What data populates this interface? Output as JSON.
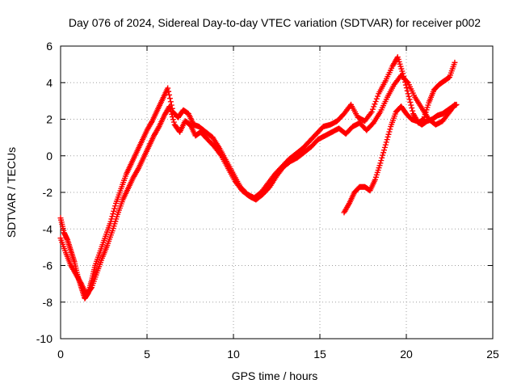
{
  "chart_data": {
    "type": "scatter",
    "title": "Day 076 of 2024, Sidereal Day-to-day VTEC variation (SDTVAR) for receiver p002",
    "xlabel": "GPS time / hours",
    "ylabel": "SDTVAR / TECUs",
    "xlim": [
      0,
      25
    ],
    "ylim": [
      -10,
      6
    ],
    "xticks": [
      "0",
      "5",
      "10",
      "15",
      "20",
      "25"
    ],
    "yticks": [
      "6",
      "4",
      "2",
      "0",
      "-2",
      "-4",
      "-6",
      "-8",
      "-10"
    ],
    "grid": true,
    "legend": "none",
    "marker": "plus",
    "series_color": "#ff0000",
    "series": [
      {
        "x": [
          0.0,
          0.2,
          0.4,
          0.6,
          0.8,
          1.0,
          1.2,
          1.4,
          1.6,
          1.8,
          2.0,
          2.3,
          2.6,
          2.9,
          3.2,
          3.5,
          3.8,
          4.1,
          4.4,
          4.7,
          5.0,
          5.3,
          5.6,
          5.9,
          6.2,
          6.5,
          6.8,
          7.1,
          7.4,
          7.7,
          8.0,
          8.4,
          8.8,
          9.2,
          9.6,
          10.0,
          10.4,
          10.8,
          11.2,
          11.6,
          12.0,
          12.4,
          12.8,
          13.2,
          13.6,
          14.0,
          14.4,
          14.8,
          15.2,
          15.6,
          16.0,
          16.4,
          16.8,
          17.2,
          17.6,
          18.0,
          18.4,
          18.8,
          19.2,
          19.5,
          19.8,
          20.1,
          20.4,
          20.7,
          21.0,
          21.3,
          21.6,
          21.9,
          22.2,
          22.5,
          22.8
        ],
        "y": [
          -3.4,
          -4.2,
          -4.6,
          -5.2,
          -5.8,
          -6.6,
          -7.2,
          -7.8,
          -7.5,
          -6.8,
          -6.0,
          -5.2,
          -4.4,
          -3.6,
          -2.6,
          -1.8,
          -1.0,
          -0.4,
          0.2,
          0.8,
          1.4,
          1.9,
          2.5,
          3.1,
          3.7,
          2.4,
          2.1,
          2.5,
          2.3,
          1.7,
          1.6,
          1.3,
          1.0,
          0.4,
          -0.3,
          -1.0,
          -1.7,
          -2.1,
          -2.3,
          -2.0,
          -1.5,
          -1.0,
          -0.6,
          -0.2,
          0.1,
          0.4,
          0.8,
          1.2,
          1.6,
          1.7,
          1.9,
          2.3,
          2.8,
          2.1,
          1.9,
          2.4,
          3.4,
          4.1,
          4.9,
          5.4,
          4.5,
          3.4,
          2.3,
          1.8,
          2.0,
          2.9,
          3.6,
          3.9,
          4.1,
          4.3,
          5.1
        ]
      },
      {
        "x": [
          0.0,
          0.3,
          0.6,
          0.9,
          1.2,
          1.5,
          1.8,
          2.1,
          2.4,
          2.7,
          3.0,
          3.3,
          3.6,
          3.9,
          4.2,
          4.5,
          4.8,
          5.1,
          5.4,
          5.7,
          6.0,
          6.3,
          6.6,
          6.9,
          7.2,
          7.5,
          7.8,
          8.1,
          8.5,
          8.9,
          9.3,
          9.7,
          10.1,
          10.5,
          10.9,
          11.3,
          11.7,
          12.1,
          12.5,
          12.9,
          13.3,
          13.7,
          14.1,
          14.5,
          14.9,
          15.3,
          15.7,
          16.1,
          16.5,
          16.9,
          17.3,
          17.7,
          18.1,
          18.5,
          18.9,
          19.3,
          19.7,
          20.1,
          20.5,
          20.9,
          21.3,
          21.7,
          22.1,
          22.5,
          22.8
        ],
        "y": [
          -4.5,
          -5.3,
          -6.0,
          -6.5,
          -7.0,
          -7.6,
          -7.2,
          -6.4,
          -5.6,
          -4.9,
          -4.1,
          -3.2,
          -2.4,
          -1.8,
          -1.2,
          -0.7,
          -0.1,
          0.5,
          1.1,
          1.6,
          2.2,
          2.7,
          1.7,
          1.3,
          1.9,
          1.7,
          1.1,
          1.3,
          0.9,
          0.5,
          0.0,
          -0.7,
          -1.4,
          -1.9,
          -2.2,
          -2.4,
          -2.1,
          -1.7,
          -1.1,
          -0.6,
          -0.3,
          -0.1,
          0.2,
          0.5,
          0.9,
          1.1,
          1.3,
          1.5,
          1.2,
          1.6,
          1.8,
          1.4,
          1.8,
          2.4,
          3.2,
          3.9,
          4.4,
          4.0,
          3.2,
          2.6,
          2.0,
          1.7,
          1.9,
          2.4,
          2.8
        ]
      },
      {
        "x": [
          16.4,
          16.7,
          17.0,
          17.3,
          17.6,
          17.9,
          18.2,
          18.5,
          18.8,
          19.1,
          19.4,
          19.7,
          20.0,
          20.3,
          20.6,
          20.9,
          21.2,
          21.5,
          21.8,
          22.1,
          22.4,
          22.7,
          22.9
        ],
        "y": [
          -3.1,
          -2.6,
          -2.0,
          -1.7,
          -1.7,
          -1.9,
          -1.3,
          -0.4,
          0.6,
          1.6,
          2.4,
          2.7,
          2.3,
          2.0,
          1.9,
          1.7,
          1.9,
          2.0,
          2.2,
          2.3,
          2.5,
          2.7,
          2.8
        ]
      }
    ]
  }
}
